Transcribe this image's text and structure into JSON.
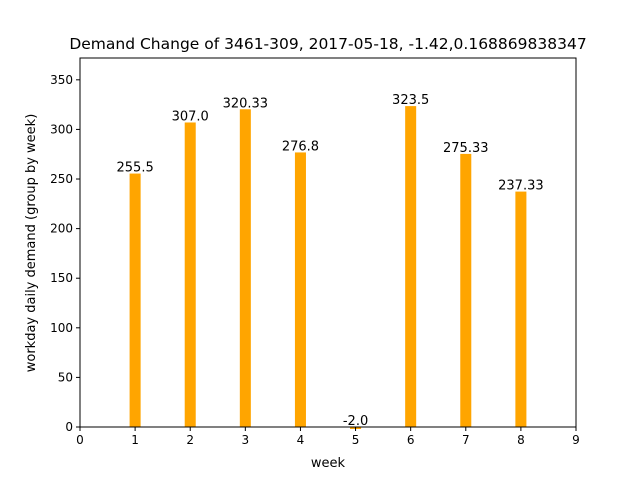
{
  "chart_data": {
    "type": "bar",
    "title": "Demand Change of 3461-309, 2017-05-18, -1.42,0.168869838347",
    "xlabel": "week",
    "ylabel": "workday daily demand (group by week)",
    "x": [
      1,
      2,
      3,
      4,
      5,
      6,
      7,
      8
    ],
    "values": [
      255.5,
      307.0,
      320.33,
      276.8,
      -2.0,
      323.5,
      275.33,
      237.33
    ],
    "value_labels": [
      "255.5",
      "307.0",
      "320.33",
      "276.8",
      "-2.0",
      "323.5",
      "275.33",
      "237.33"
    ],
    "xlim": [
      0,
      9
    ],
    "ylim": [
      0,
      372
    ],
    "xticks": [
      0,
      1,
      2,
      3,
      4,
      5,
      6,
      7,
      8,
      9
    ],
    "yticks": [
      0,
      50,
      100,
      150,
      200,
      250,
      300,
      350
    ],
    "bar_color": "#ffa500",
    "grid": false,
    "legend": false
  }
}
